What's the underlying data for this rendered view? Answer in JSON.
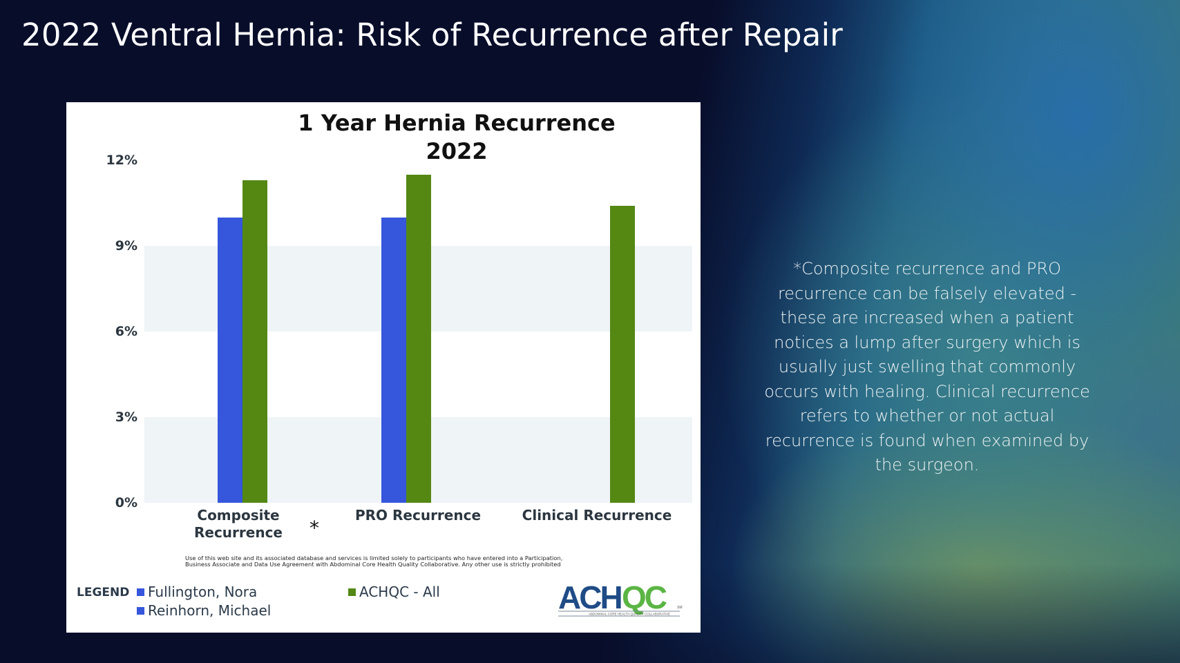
{
  "slide": {
    "title": "2022 Ventral Hernia: Risk of Recurrence after Repair",
    "note": "*Composite recurrence and PRO recurrence can be falsely elevated - these are increased when a patient notices a lump after surgery which is usually just swelling that commonly occurs with healing. Clinical recurrence refers to whether or not actual recurrence is found when examined by the surgeon."
  },
  "chart": {
    "title_line1": "1 Year Hernia Recurrence",
    "title_line2": "2022",
    "asterisk": "*",
    "disclaimer": "Use of this web site and its associated database and services is limited solely to participants who have entered into a Participation, Business Associate and Data Use Agreement with Abdominal Core Health Quality Collaborative. Any other use is strictly prohibited",
    "legend_title": "LEGEND",
    "legend": [
      {
        "label": "Fullington, Nora",
        "color": "#3656dc"
      },
      {
        "label": "Reinhorn, Michael",
        "color": "#3656dc"
      },
      {
        "label": "ACHQC - All",
        "color": "#548813"
      }
    ],
    "logo": {
      "text_ach": "ACH",
      "text_qc": "QC",
      "tagline": "ABDOMINAL CORE HEALTH QUALITY COLLABORATIVE",
      "tm": "SM"
    }
  },
  "chart_data": {
    "type": "bar",
    "title": "1 Year Hernia Recurrence 2022",
    "categories": [
      "Composite Recurrence",
      "PRO Recurrence",
      "Clinical Recurrence"
    ],
    "series": [
      {
        "name": "Fullington, Nora / Reinhorn, Michael",
        "color": "#3656dc",
        "values": [
          10.0,
          10.0,
          null
        ]
      },
      {
        "name": "ACHQC - All",
        "color": "#548813",
        "values": [
          11.3,
          11.5,
          10.4
        ]
      }
    ],
    "xlabel": "",
    "ylabel": "",
    "ylim": [
      0,
      12
    ],
    "yticks": [
      "0%",
      "3%",
      "6%",
      "9%",
      "12%"
    ],
    "grid": "alternating horizontal bands",
    "legend_position": "bottom",
    "annotations": [
      "* next to Composite Recurrence"
    ]
  }
}
